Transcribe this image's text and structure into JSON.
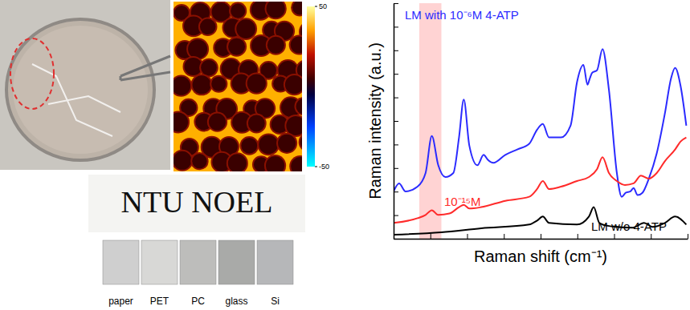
{
  "chart_data": {
    "type": "line",
    "x_label": "Raman shift (cm⁻¹)",
    "y_label": "Raman intensity (a.u.)",
    "xlim": [
      200,
      1800
    ],
    "ylim": [
      0,
      10
    ],
    "xticks": [
      200,
      400,
      600,
      800,
      1000,
      1200,
      1400,
      1600,
      1800
    ],
    "yticks": [
      0,
      1,
      2,
      3,
      4,
      5,
      6,
      7,
      8,
      9,
      10
    ],
    "tick_labels": false,
    "highlight": [
      340,
      460
    ],
    "series": [
      {
        "name": "LM with 10⁻⁶M 4-ATP",
        "color": "#2b2bff",
        "x": [
          200,
          230,
          265,
          330,
          374,
          408,
          443,
          482,
          525,
          556,
          582,
          612,
          656,
          690,
          712,
          743,
          808,
          873,
          938,
          981,
          1012,
          1046,
          1111,
          1163,
          1198,
          1233,
          1255,
          1268,
          1281,
          1307,
          1337,
          1372,
          1415,
          1441,
          1463,
          1489,
          1506,
          1528,
          1554,
          1589,
          1632,
          1676,
          1710,
          1732,
          1762,
          1793
        ],
        "values": [
          2.01,
          2.35,
          2.01,
          2.21,
          2.79,
          4.36,
          3.12,
          2.62,
          2.79,
          4.3,
          5.91,
          3.96,
          3.12,
          3.56,
          3.36,
          3.22,
          3.56,
          3.79,
          4.03,
          4.63,
          4.87,
          4.3,
          4.3,
          4.8,
          6.64,
          7.38,
          6.54,
          6.81,
          7.05,
          7.15,
          8.05,
          6.31,
          2.79,
          1.78,
          1.95,
          2.01,
          2.15,
          1.85,
          1.95,
          2.55,
          3.62,
          5.3,
          6.81,
          7.25,
          6.48,
          4.8
        ]
      },
      {
        "name": "10⁻¹⁵M",
        "color": "#ff2a2a",
        "x": [
          200,
          330,
          374,
          408,
          443,
          504,
          556,
          582,
          612,
          677,
          808,
          938,
          981,
          1012,
          1046,
          1111,
          1198,
          1263,
          1307,
          1337,
          1372,
          1415,
          1459,
          1506,
          1546,
          1589,
          1632,
          1676,
          1732,
          1762,
          1793
        ],
        "values": [
          0.67,
          0.87,
          1.01,
          1.21,
          1.01,
          1.07,
          1.34,
          1.44,
          1.28,
          1.34,
          1.61,
          1.78,
          2.11,
          2.45,
          2.11,
          2.21,
          2.45,
          2.62,
          2.95,
          3.46,
          2.79,
          2.45,
          2.28,
          2.35,
          2.68,
          2.55,
          2.79,
          3.29,
          3.79,
          4.13,
          4.3
        ]
      },
      {
        "name": "LM w/o 4-ATP",
        "color": "#000000",
        "x": [
          200,
          460,
          677,
          938,
          981,
          1012,
          1046,
          1198,
          1263,
          1289,
          1320,
          1372,
          1502,
          1563,
          1610,
          1676,
          1732,
          1793
        ],
        "values": [
          0.17,
          0.27,
          0.44,
          0.6,
          0.77,
          0.94,
          0.67,
          0.6,
          0.94,
          1.34,
          0.67,
          0.54,
          0.47,
          0.67,
          0.5,
          0.67,
          0.94,
          0.6
        ]
      }
    ]
  },
  "photos": {
    "sign_text": "NTU NOEL",
    "substrates": [
      "paper",
      "PET",
      "PC",
      "glass",
      "Si"
    ]
  },
  "field_map": {
    "colorbar_range": [
      -50,
      50
    ],
    "colorbar_ticks": [
      -50,
      50
    ]
  }
}
